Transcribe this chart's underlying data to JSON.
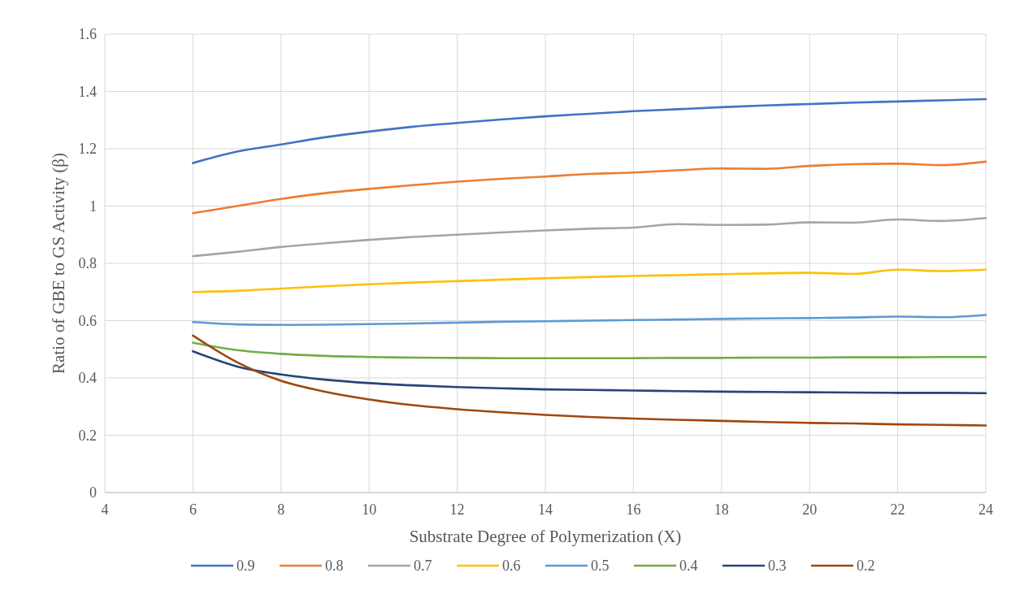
{
  "chart_data": {
    "type": "line",
    "xlabel": "Substrate Degree of Polymerization (X)",
    "ylabel": "Ratio of GBE to GS Activity (β)",
    "x": [
      6,
      7,
      8,
      9,
      10,
      11,
      12,
      13,
      14,
      15,
      16,
      17,
      18,
      19,
      20,
      21,
      22,
      23,
      24
    ],
    "series": [
      {
        "name": "0.9",
        "color": "#4472c4",
        "values": [
          1.15,
          1.19,
          1.215,
          1.24,
          1.26,
          1.277,
          1.29,
          1.302,
          1.313,
          1.322,
          1.331,
          1.338,
          1.345,
          1.351,
          1.356,
          1.361,
          1.365,
          1.369,
          1.373
        ]
      },
      {
        "name": "0.8",
        "color": "#ed7d31",
        "values": [
          0.975,
          1.0,
          1.025,
          1.045,
          1.06,
          1.073,
          1.085,
          1.095,
          1.103,
          1.112,
          1.117,
          1.125,
          1.131,
          1.13,
          1.14,
          1.146,
          1.148,
          1.143,
          1.155
        ]
      },
      {
        "name": "0.7",
        "color": "#a5a5a5",
        "values": [
          0.825,
          0.84,
          0.857,
          0.87,
          0.882,
          0.892,
          0.9,
          0.908,
          0.915,
          0.921,
          0.925,
          0.937,
          0.934,
          0.935,
          0.943,
          0.942,
          0.953,
          0.948,
          0.958
        ]
      },
      {
        "name": "0.6",
        "color": "#ffc000",
        "values": [
          0.7,
          0.704,
          0.712,
          0.72,
          0.727,
          0.733,
          0.738,
          0.743,
          0.748,
          0.752,
          0.756,
          0.759,
          0.762,
          0.765,
          0.767,
          0.763,
          0.778,
          0.773,
          0.778
        ]
      },
      {
        "name": "0.5",
        "color": "#5b9bd5",
        "values": [
          0.595,
          0.587,
          0.585,
          0.586,
          0.588,
          0.59,
          0.593,
          0.596,
          0.598,
          0.6,
          0.602,
          0.604,
          0.606,
          0.608,
          0.609,
          0.611,
          0.614,
          0.612,
          0.62
        ]
      },
      {
        "name": "0.4",
        "color": "#70ad47",
        "values": [
          0.523,
          0.497,
          0.484,
          0.477,
          0.473,
          0.471,
          0.47,
          0.469,
          0.469,
          0.469,
          0.469,
          0.47,
          0.47,
          0.471,
          0.471,
          0.472,
          0.472,
          0.473,
          0.473
        ]
      },
      {
        "name": "0.3",
        "color": "#264478",
        "values": [
          0.493,
          0.44,
          0.412,
          0.394,
          0.382,
          0.374,
          0.368,
          0.364,
          0.36,
          0.358,
          0.356,
          0.354,
          0.352,
          0.351,
          0.35,
          0.349,
          0.348,
          0.348,
          0.347
        ]
      },
      {
        "name": "0.2",
        "color": "#9e480e",
        "values": [
          0.548,
          0.455,
          0.39,
          0.352,
          0.325,
          0.305,
          0.291,
          0.28,
          0.271,
          0.264,
          0.258,
          0.254,
          0.25,
          0.246,
          0.243,
          0.241,
          0.238,
          0.236,
          0.234
        ]
      }
    ],
    "xlim": [
      4,
      24
    ],
    "xticks": [
      4,
      6,
      8,
      10,
      12,
      14,
      16,
      18,
      20,
      22,
      24
    ],
    "ylim": [
      0,
      1.6
    ],
    "yticks": [
      0,
      {
        "value": 0.2,
        "label": "0.2"
      },
      {
        "value": 0.4,
        "label": "0.4"
      },
      {
        "value": 0.6,
        "label": "0.6"
      },
      {
        "value": 0.8,
        "label": "0.8"
      },
      1,
      {
        "value": 1.2,
        "label": "1.2"
      },
      {
        "value": 1.4,
        "label": "1.4"
      },
      {
        "value": 1.6,
        "label": "1.6"
      }
    ],
    "grid": true,
    "legend": "bottom",
    "marker": "none",
    "line_style": "solid"
  }
}
